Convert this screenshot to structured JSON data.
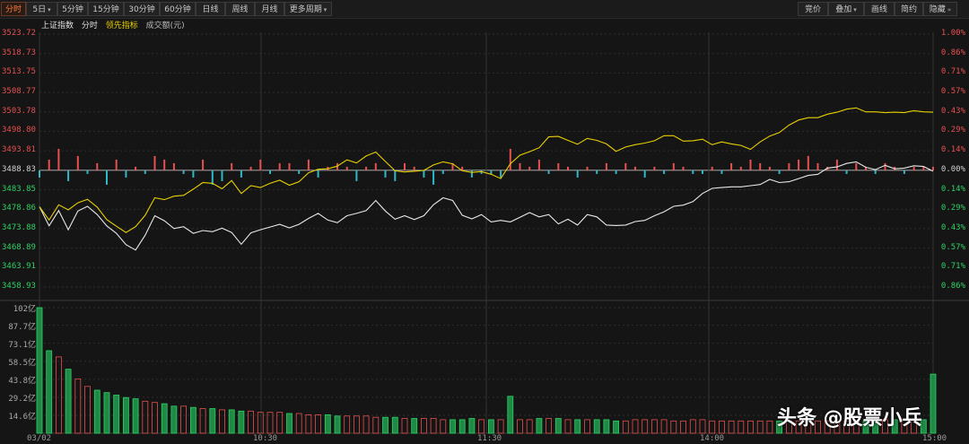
{
  "toolbar": {
    "left": [
      {
        "label": "分时",
        "active": true,
        "dropdown": false
      },
      {
        "label": "5日",
        "active": false,
        "dropdown": true
      },
      {
        "label": "5分钟",
        "active": false,
        "dropdown": false
      },
      {
        "label": "15分钟",
        "active": false,
        "dropdown": false
      },
      {
        "label": "30分钟",
        "active": false,
        "dropdown": false
      },
      {
        "label": "60分钟",
        "active": false,
        "dropdown": false
      },
      {
        "label": "日线",
        "active": false,
        "dropdown": false
      },
      {
        "label": "周线",
        "active": false,
        "dropdown": false
      },
      {
        "label": "月线",
        "active": false,
        "dropdown": false
      },
      {
        "label": "更多周期",
        "active": false,
        "dropdown": true
      }
    ],
    "right": [
      {
        "label": "竞价",
        "dropdown": false
      },
      {
        "label": "叠加",
        "dropdown": true
      },
      {
        "label": "画线",
        "dropdown": false
      },
      {
        "label": "简约",
        "dropdown": false
      },
      {
        "label": "隐藏",
        "dropdown": false,
        "suffix": "»"
      }
    ]
  },
  "legend": {
    "name": "上证指数",
    "mode": "分时",
    "lead": "领先指标",
    "volume": "成交额(元)"
  },
  "price_axis": {
    "left": [
      {
        "v": "3523.72",
        "dir": "up"
      },
      {
        "v": "3518.73",
        "dir": "up"
      },
      {
        "v": "3513.75",
        "dir": "up"
      },
      {
        "v": "3508.77",
        "dir": "up"
      },
      {
        "v": "3503.78",
        "dir": "up"
      },
      {
        "v": "3498.80",
        "dir": "up"
      },
      {
        "v": "3493.81",
        "dir": "up"
      },
      {
        "v": "3488.83",
        "dir": "flat"
      },
      {
        "v": "3483.85",
        "dir": "down"
      },
      {
        "v": "3478.86",
        "dir": "down"
      },
      {
        "v": "3473.88",
        "dir": "down"
      },
      {
        "v": "3468.89",
        "dir": "down"
      },
      {
        "v": "3463.91",
        "dir": "down"
      },
      {
        "v": "3458.93",
        "dir": "down"
      }
    ],
    "right": [
      {
        "v": "1.00%",
        "dir": "up"
      },
      {
        "v": "0.86%",
        "dir": "up"
      },
      {
        "v": "0.71%",
        "dir": "up"
      },
      {
        "v": "0.57%",
        "dir": "up"
      },
      {
        "v": "0.43%",
        "dir": "up"
      },
      {
        "v": "0.29%",
        "dir": "up"
      },
      {
        "v": "0.14%",
        "dir": "up"
      },
      {
        "v": "0.00%",
        "dir": "flat"
      },
      {
        "v": "0.14%",
        "dir": "down"
      },
      {
        "v": "0.29%",
        "dir": "down"
      },
      {
        "v": "0.43%",
        "dir": "down"
      },
      {
        "v": "0.57%",
        "dir": "down"
      },
      {
        "v": "0.71%",
        "dir": "down"
      },
      {
        "v": "0.86%",
        "dir": "down"
      }
    ]
  },
  "volume_axis": [
    "102亿",
    "87.7亿",
    "73.1亿",
    "58.5亿",
    "43.8亿",
    "29.2亿",
    "14.6亿"
  ],
  "time_axis": [
    "03/02",
    "10:30",
    "11:30",
    "14:00",
    "15:00"
  ],
  "colors": {
    "up": "#e65050",
    "down": "#2fd064",
    "price_line": "#e8e8e8",
    "lead_line": "#e8d000",
    "zero": "#dddddd",
    "grid": "#2e2e2e"
  },
  "chart_data": {
    "type": "line",
    "prev_close": 3488.83,
    "price_range": [
      3458.93,
      3523.72
    ],
    "volume_max_yi": 102,
    "series": [
      {
        "name": "上证指数",
        "values": [
          3479.5,
          3474.6,
          3478.5,
          3473.6,
          3478.4,
          3479.6,
          3477.5,
          3474.6,
          3472.7,
          3469.8,
          3468.4,
          3472.2,
          3477.2,
          3475.9,
          3473.9,
          3474.4,
          3472.7,
          3473.4,
          3473.1,
          3474.0,
          3472.9,
          3469.9,
          3472.8,
          3473.6,
          3474.3,
          3475.0,
          3474.1,
          3475.0,
          3476.5,
          3477.8,
          3476.1,
          3475.4,
          3477.2,
          3477.8,
          3478.5,
          3481.1,
          3478.4,
          3476.3,
          3477.2,
          3476.2,
          3477.2,
          3480.0,
          3481.8,
          3481.1,
          3477.3,
          3476.4,
          3477.5,
          3475.6,
          3476.0,
          3475.6,
          3476.8,
          3478.0,
          3476.9,
          3477.5,
          3475.1,
          3476.3,
          3474.8,
          3477.5,
          3476.9,
          3474.8,
          3474.7,
          3474.8,
          3475.7,
          3476.0,
          3477.2,
          3478.2,
          3479.6,
          3479.9,
          3480.8,
          3482.9,
          3484.2,
          3484.4,
          3484.6,
          3484.6,
          3484.9,
          3485.2,
          3486.5,
          3485.7,
          3485.9,
          3486.7,
          3487.5,
          3487.8,
          3489.4,
          3489.7,
          3490.6,
          3491.0,
          3489.6,
          3489.0,
          3490.1,
          3489.2,
          3489.4,
          3490.0,
          3489.8,
          3488.6
        ]
      },
      {
        "name": "领先指标",
        "values": [
          3479.5,
          3476.1,
          3480.0,
          3478.7,
          3480.5,
          3481.4,
          3479.4,
          3476.2,
          3474.5,
          3472.9,
          3474.4,
          3477.3,
          3481.8,
          3481.3,
          3482.2,
          3482.4,
          3484.0,
          3485.7,
          3485.5,
          3484.1,
          3486.2,
          3482.9,
          3484.9,
          3484.4,
          3485.5,
          3486.3,
          3485.0,
          3485.9,
          3488.2,
          3489.1,
          3489.2,
          3489.9,
          3491.5,
          3490.7,
          3492.5,
          3493.5,
          3491.1,
          3488.7,
          3488.4,
          3488.6,
          3488.8,
          3490.2,
          3491.0,
          3490.5,
          3488.7,
          3488.3,
          3488.5,
          3487.8,
          3486.7,
          3490.5,
          3492.7,
          3493.6,
          3494.6,
          3497.4,
          3497.5,
          3496.5,
          3495.5,
          3497.0,
          3496.5,
          3495.6,
          3493.7,
          3494.8,
          3495.4,
          3495.8,
          3496.4,
          3497.7,
          3497.7,
          3496.3,
          3496.4,
          3496.8,
          3495.4,
          3496.1,
          3495.6,
          3495.2,
          3494.2,
          3496.1,
          3497.6,
          3498.5,
          3500.4,
          3501.7,
          3502.3,
          3502.3,
          3503.2,
          3503.7,
          3504.5,
          3504.8,
          3503.8,
          3503.8,
          3503.6,
          3503.7,
          3503.6,
          3504.1,
          3503.8,
          3503.7
        ]
      }
    ],
    "volume_yi": [
      102,
      67,
      62,
      52,
      44,
      38,
      35,
      33,
      31,
      29,
      28,
      26,
      25,
      24,
      22,
      22,
      21,
      20,
      20,
      19,
      19,
      18,
      18,
      17,
      17,
      17,
      16,
      16,
      15,
      15,
      15,
      14,
      14,
      14,
      14,
      13,
      13,
      13,
      12,
      12,
      12,
      12,
      11,
      11,
      11,
      12,
      11,
      11,
      11,
      30,
      11,
      11,
      12,
      12,
      12,
      11,
      11,
      11,
      11,
      11,
      10,
      10,
      11,
      11,
      11,
      11,
      10,
      10,
      11,
      11,
      10,
      10,
      10,
      10,
      10,
      10,
      10,
      10,
      10,
      10,
      10,
      10,
      10,
      10,
      10,
      10,
      10,
      11,
      11,
      11,
      11,
      11,
      11,
      48
    ],
    "flow": [
      -2,
      3,
      6,
      -3,
      4,
      -1,
      2,
      -4,
      3,
      -2,
      1,
      -1,
      4,
      3,
      2,
      -1,
      -2,
      3,
      -4,
      -3,
      2,
      -2,
      1,
      3,
      -1,
      2,
      2,
      -1,
      3,
      -2,
      1,
      2,
      1,
      -3,
      1,
      2,
      -2,
      -3,
      2,
      1,
      -2,
      -4,
      -1,
      2,
      1,
      -2,
      -1,
      -1,
      -2,
      6,
      2,
      1,
      3,
      -1,
      2,
      1,
      -2,
      1,
      -1,
      2,
      -1,
      2,
      1,
      -2,
      1,
      -1,
      2,
      1,
      -1,
      -1,
      1,
      -1,
      2,
      1,
      3,
      2,
      1,
      -1,
      2,
      3,
      4,
      2,
      1,
      3,
      -1,
      2,
      1,
      -1,
      2,
      1,
      -1,
      1,
      1,
      1
    ]
  }
}
